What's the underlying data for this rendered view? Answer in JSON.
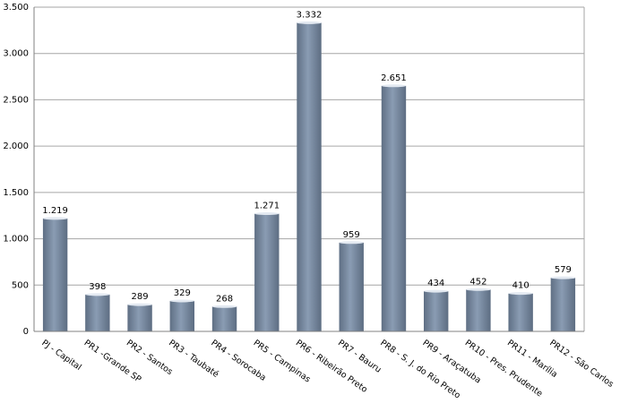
{
  "chart_data": {
    "type": "bar",
    "categories": [
      "PJ - Capital",
      "PR1 -Grande SP",
      "PR2 - Santos",
      "PR3 - Taubaté",
      "PR4 - Sorocaba",
      "PR5 - Campinas",
      "PR6 - Ribeirão Preto",
      "PR7 - Bauru",
      "PR8 - S. J. do Rio Preto",
      "PR9 - Araçatuba",
      "PR10 - Pres. Prudente",
      "PR11 - Marília",
      "PR12 - São Carlos"
    ],
    "values": [
      1219,
      398,
      289,
      329,
      268,
      1271,
      3332,
      959,
      2651,
      434,
      452,
      410,
      579
    ],
    "value_labels": [
      "1.219",
      "398",
      "289",
      "329",
      "268",
      "1.271",
      "3.332",
      "959",
      "2.651",
      "434",
      "452",
      "410",
      "579"
    ],
    "color": "#8a9cb3",
    "ylim": [
      0,
      3500
    ],
    "yticks": [
      0,
      500,
      {
        "value": 1000,
        "label": "1.000"
      },
      {
        "value": 1500,
        "label": "1.500"
      },
      {
        "value": 2000,
        "label": "2.000"
      },
      {
        "value": 2500,
        "label": "2.500"
      },
      {
        "value": 3000,
        "label": "3.000"
      },
      {
        "value": 3500,
        "label": "3.500"
      }
    ],
    "grid": true
  }
}
